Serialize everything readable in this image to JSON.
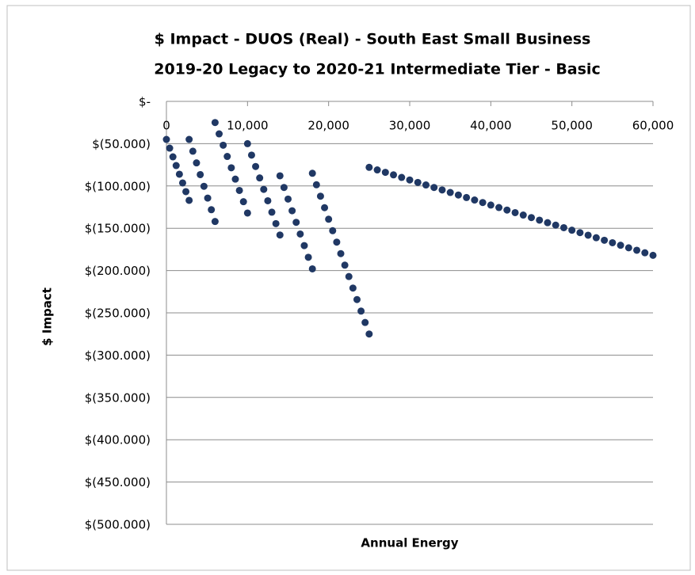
{
  "chart_data": {
    "type": "scatter",
    "title": "$ Impact - DUOS (Real) - South East Small Business",
    "subtitle": "2019-20 Legacy to 2020-21 Intermediate Tier - Basic",
    "x_label": "Annual Energy",
    "y_label": "$ Impact",
    "xlim": [
      0,
      60000
    ],
    "ylim": [
      -500,
      0
    ],
    "xticks": [
      0,
      {
        "value": 10000,
        "label": "10,000"
      },
      {
        "value": 20000,
        "label": "20,000"
      },
      {
        "value": 30000,
        "label": "30,000"
      },
      {
        "value": 40000,
        "label": "40,000"
      },
      {
        "value": 50000,
        "label": "50,000"
      },
      {
        "value": 60000,
        "label": "60,000"
      }
    ],
    "yticks": [
      {
        "value": 0,
        "label": "$-"
      },
      {
        "value": -50,
        "label": "$(50.000)"
      },
      {
        "value": -100,
        "label": "$(100.000)"
      },
      {
        "value": -150,
        "label": "$(150.000)"
      },
      {
        "value": -200,
        "label": "$(200.000)"
      },
      {
        "value": -250,
        "label": "$(250.000)"
      },
      {
        "value": -300,
        "label": "$(300.000)"
      },
      {
        "value": -350,
        "label": "$(350.000)"
      },
      {
        "value": -400,
        "label": "$(400.000)"
      },
      {
        "value": -450,
        "label": "$(450.000)"
      },
      {
        "value": -500,
        "label": "$(500.000)"
      }
    ],
    "grid": true,
    "series": [
      {
        "color": "#203864",
        "x": [
          0,
          400,
          800,
          1200,
          1600,
          2000,
          2400,
          2800,
          2800,
          3260,
          3710,
          4170,
          4630,
          5090,
          5540,
          6000,
          6000,
          6500,
          7000,
          7500,
          8000,
          8500,
          9000,
          9500,
          10000,
          10000,
          10500,
          11000,
          11500,
          12000,
          12500,
          13000,
          13500,
          14000,
          14000,
          14500,
          15000,
          15500,
          16000,
          16500,
          17000,
          17500,
          18000,
          18000,
          18500,
          19000,
          19500,
          20000,
          20500,
          21000,
          21500,
          22000,
          22500,
          23000,
          23500,
          24000,
          24500,
          25000,
          25000,
          26000,
          27000,
          28000,
          29000,
          30000,
          31000,
          32000,
          33000,
          34000,
          35000,
          36000,
          37000,
          38000,
          39000,
          40000,
          41000,
          42000,
          43000,
          44000,
          45000,
          46000,
          47000,
          48000,
          49000,
          50000,
          51000,
          52000,
          53000,
          54000,
          55000,
          56000,
          57000,
          58000,
          59000,
          60000
        ],
        "values": [
          -45,
          -55.3,
          -65.6,
          -75.9,
          -86.1,
          -96.4,
          -106.7,
          -117,
          -45,
          -58.9,
          -72.7,
          -86.6,
          -100.4,
          -114.3,
          -128.1,
          -142,
          -25,
          -38.4,
          -51.8,
          -65.1,
          -78.5,
          -91.9,
          -105.3,
          -118.6,
          -132,
          -50,
          -63.5,
          -77,
          -90.5,
          -104,
          -117.5,
          -131,
          -144.5,
          -158,
          -88,
          -101.8,
          -115.5,
          -129.3,
          -143,
          -156.8,
          -170.5,
          -184.3,
          -198,
          -85,
          -98.6,
          -112.1,
          -125.7,
          -139.3,
          -152.9,
          -166.4,
          -180,
          -193.6,
          -207.1,
          -220.7,
          -234.3,
          -247.9,
          -261.4,
          -275,
          -78,
          -81,
          -83.9,
          -86.9,
          -89.9,
          -92.9,
          -95.8,
          -98.8,
          -101.8,
          -104.7,
          -107.7,
          -110.7,
          -113.7,
          -116.6,
          -119.6,
          -122.6,
          -125.5,
          -128.5,
          -131.5,
          -134.4,
          -137.4,
          -140.4,
          -143.4,
          -146.3,
          -149.3,
          -152.3,
          -155.2,
          -158.2,
          -161.2,
          -164.2,
          -167.1,
          -170.1,
          -173.1,
          -176,
          -179,
          -182
        ]
      }
    ]
  }
}
